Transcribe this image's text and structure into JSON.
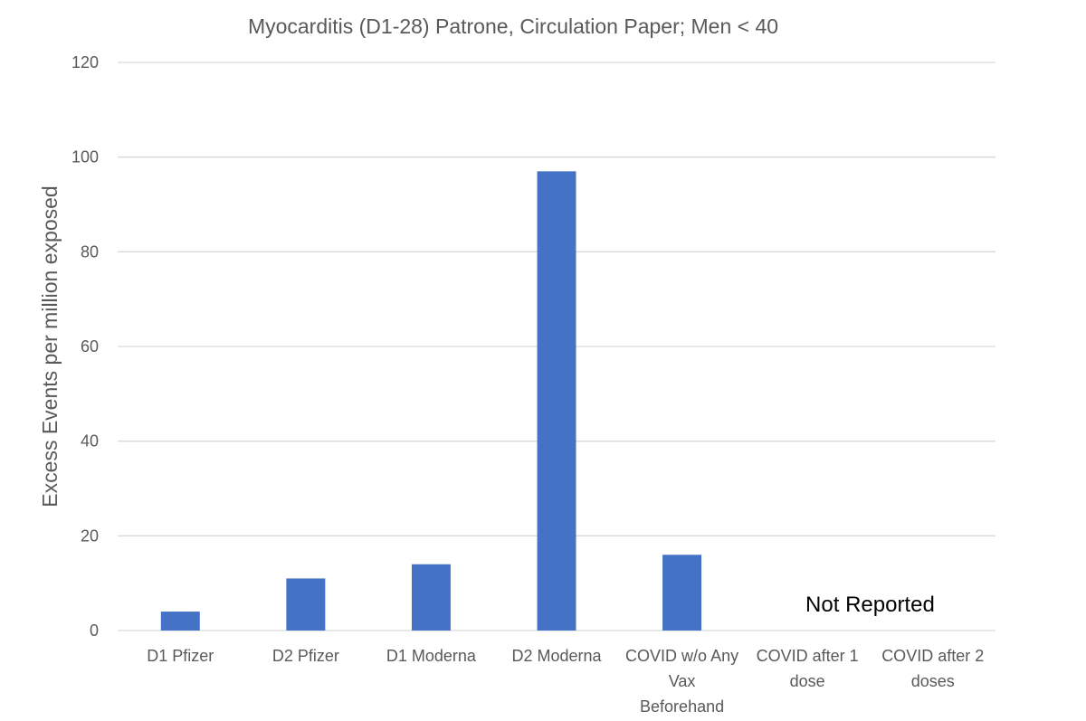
{
  "chart_data": {
    "type": "bar",
    "title": "Myocarditis (D1-28) Patrone, Circulation Paper; Men < 40",
    "xlabel": "",
    "ylabel": "Excess Events per million exposed",
    "categories": [
      [
        "D1 Pfizer"
      ],
      [
        "D2 Pfizer"
      ],
      [
        "D1 Moderna"
      ],
      [
        "D2 Moderna"
      ],
      [
        "COVID w/o Any",
        "Vax",
        "Beforehand"
      ],
      [
        "COVID after 1",
        "dose"
      ],
      [
        "COVID after 2",
        "doses"
      ]
    ],
    "values": [
      4,
      11,
      14,
      97,
      16,
      null,
      null
    ],
    "ylim": [
      0,
      120
    ],
    "yticks": [
      0,
      20,
      40,
      60,
      80,
      100,
      120
    ],
    "grid": true,
    "legend": "none",
    "bar_color": "#4472C4",
    "grid_color": "#D9D9D9",
    "annotation": {
      "text": "Not Reported",
      "categories": [
        5,
        6
      ],
      "y": 4
    }
  }
}
